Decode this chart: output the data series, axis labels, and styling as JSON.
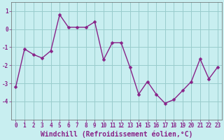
{
  "x": [
    0,
    1,
    2,
    3,
    4,
    5,
    6,
    7,
    8,
    9,
    10,
    11,
    12,
    13,
    14,
    15,
    16,
    17,
    18,
    19,
    20,
    21,
    22,
    23
  ],
  "y": [
    -3.2,
    -1.1,
    -1.4,
    -1.6,
    -1.2,
    0.8,
    0.1,
    0.1,
    0.1,
    0.4,
    -1.7,
    -0.75,
    -0.75,
    -2.1,
    -3.6,
    -2.9,
    -3.6,
    -4.1,
    -3.9,
    -3.4,
    -2.9,
    -1.65,
    -2.75,
    -2.1
  ],
  "line_color": "#882288",
  "marker": "D",
  "marker_size": 2.5,
  "bg_color": "#c8eef0",
  "grid_color": "#99cccc",
  "xlabel": "Windchill (Refroidissement éolien,°C)",
  "xlabel_fontsize": 7,
  "ylim": [
    -5,
    1.5
  ],
  "xlim": [
    -0.5,
    23.5
  ],
  "yticks": [
    -4,
    -3,
    -2,
    -1,
    0,
    1
  ],
  "xtick_labels": [
    "0",
    "1",
    "2",
    "3",
    "4",
    "5",
    "6",
    "7",
    "8",
    "9",
    "10",
    "11",
    "12",
    "13",
    "14",
    "15",
    "16",
    "17",
    "18",
    "19",
    "20",
    "21",
    "22",
    "23"
  ],
  "tick_fontsize": 5.5,
  "linewidth": 1.0
}
